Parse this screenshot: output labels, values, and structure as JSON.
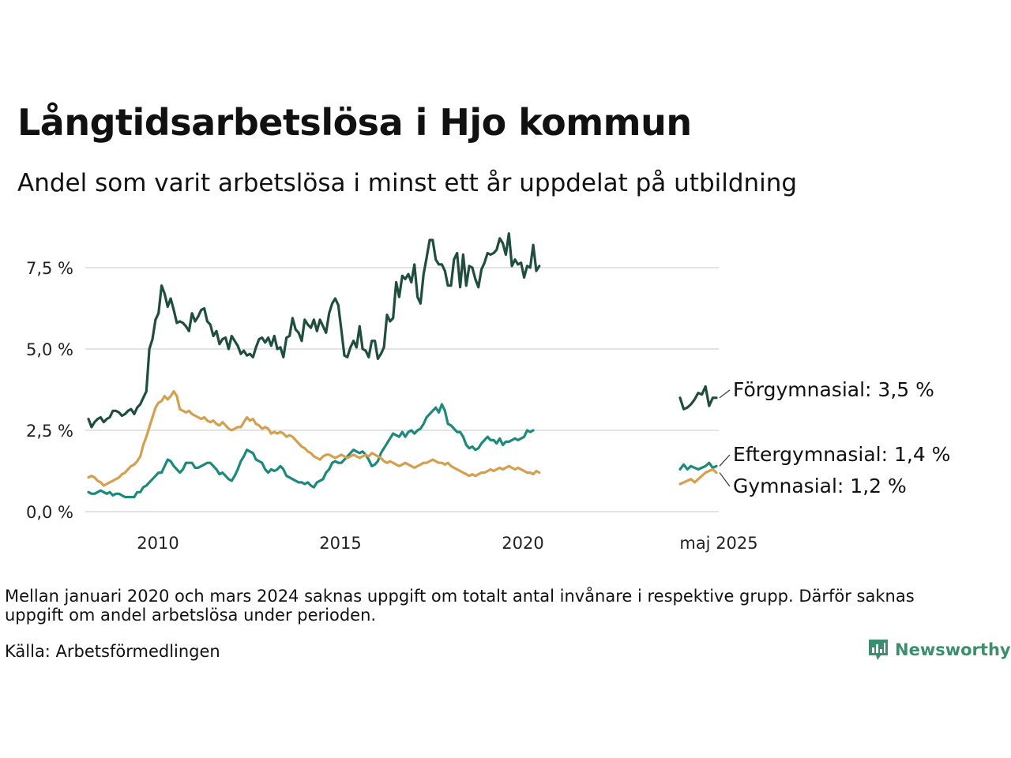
{
  "header": {
    "title": "Långtidsarbetslösa i Hjo kommun",
    "subtitle": "Andel som varit arbetslösa i minst ett år uppdelat på utbildning"
  },
  "footer": {
    "note": "Mellan januari 2020 och mars 2024 saknas uppgift om totalt antal invånare i respektive grupp. Därför saknas uppgift om andel arbetslösa under perioden.",
    "source": "Källa: Arbetsförmedlingen",
    "brand": "Newsworthy",
    "brand_icon": "bar-chart-logo-icon"
  },
  "chart_data": {
    "type": "line",
    "y_ticks": [
      "0,0 %",
      "2,5 %",
      "5,0 %",
      "7,5 %"
    ],
    "y_tick_values": [
      0,
      2.5,
      5.0,
      7.5
    ],
    "x_ticks": [
      "2010",
      "2015",
      "2020",
      "maj 2025"
    ],
    "grid": true,
    "legend": "end labels at right",
    "series": [
      {
        "name": "Förgymnasial",
        "label": "Förgymnasial: 3,5 %",
        "color": "#1f4e3d",
        "values": [
          2.85,
          2.6,
          2.75,
          2.85,
          2.9,
          2.75,
          2.85,
          2.9,
          3.1,
          3.1,
          3.05,
          2.95,
          3.0,
          3.1,
          3.15,
          3.0,
          3.2,
          3.3,
          3.5,
          3.7,
          5.0,
          5.3,
          5.9,
          6.1,
          6.95,
          6.7,
          6.3,
          6.55,
          6.2,
          5.8,
          5.85,
          5.8,
          5.7,
          5.55,
          6.1,
          5.85,
          6.0,
          6.2,
          6.25,
          5.85,
          5.75,
          5.4,
          5.55,
          5.15,
          5.3,
          5.35,
          5.0,
          5.4,
          5.25,
          5.1,
          4.85,
          4.95,
          4.8,
          4.85,
          4.75,
          5.05,
          5.3,
          5.35,
          5.2,
          5.35,
          5.1,
          5.4,
          5.0,
          5.05,
          4.75,
          5.35,
          5.4,
          5.95,
          5.6,
          5.5,
          5.25,
          5.9,
          5.75,
          5.65,
          5.9,
          5.55,
          5.9,
          5.7,
          5.5,
          6.1,
          6.4,
          6.55,
          6.35,
          5.6,
          4.8,
          4.75,
          5.05,
          5.25,
          5.05,
          5.7,
          5.0,
          4.95,
          4.75,
          5.25,
          5.25,
          4.7,
          4.85,
          5.05,
          6.05,
          5.85,
          5.95,
          7.05,
          6.6,
          7.25,
          7.15,
          7.3,
          7.05,
          7.6,
          6.6,
          6.4,
          7.3,
          7.8,
          8.35,
          8.35,
          7.75,
          7.6,
          7.6,
          7.4,
          6.95,
          6.95,
          7.75,
          7.95,
          6.9,
          7.9,
          6.95,
          7.55,
          7.5,
          7.15,
          6.9,
          7.45,
          7.65,
          7.95,
          7.9,
          7.95,
          8.05,
          8.4,
          8.25,
          7.9,
          8.55,
          7.55,
          7.75,
          7.6,
          7.65,
          7.2,
          7.55,
          7.5,
          8.2,
          7.4,
          7.55
        ],
        "tail_values": [
          3.5,
          3.15,
          3.2,
          3.3,
          3.45,
          3.65,
          3.6,
          3.85,
          3.25,
          3.5,
          3.5
        ]
      },
      {
        "name": "Eftergymnasial",
        "label": "Eftergymnasial: 1,4 %",
        "color": "#1c8a7a",
        "values": [
          0.6,
          0.55,
          0.55,
          0.6,
          0.65,
          0.6,
          0.55,
          0.6,
          0.5,
          0.55,
          0.55,
          0.5,
          0.45,
          0.45,
          0.45,
          0.45,
          0.6,
          0.6,
          0.75,
          0.8,
          0.9,
          1.0,
          1.1,
          1.2,
          1.2,
          1.4,
          1.6,
          1.55,
          1.4,
          1.3,
          1.2,
          1.3,
          1.5,
          1.5,
          1.5,
          1.35,
          1.35,
          1.4,
          1.45,
          1.5,
          1.5,
          1.4,
          1.3,
          1.15,
          1.2,
          1.1,
          1.0,
          0.95,
          1.1,
          1.3,
          1.55,
          1.7,
          1.9,
          1.85,
          1.8,
          1.6,
          1.55,
          1.5,
          1.3,
          1.2,
          1.3,
          1.25,
          1.3,
          1.4,
          1.3,
          1.1,
          1.05,
          1.0,
          0.95,
          0.9,
          0.9,
          0.85,
          0.9,
          0.8,
          0.75,
          0.9,
          0.95,
          1.0,
          1.2,
          1.3,
          1.5,
          1.55,
          1.5,
          1.5,
          1.6,
          1.7,
          1.8,
          1.9,
          1.85,
          1.8,
          1.85,
          1.75,
          1.6,
          1.4,
          1.45,
          1.55,
          1.8,
          1.95,
          2.1,
          2.25,
          2.4,
          2.35,
          2.3,
          2.45,
          2.3,
          2.45,
          2.5,
          2.4,
          2.5,
          2.55,
          2.7,
          2.9,
          3.0,
          3.1,
          3.2,
          3.05,
          3.3,
          3.1,
          2.7,
          2.65,
          2.55,
          2.45,
          2.45,
          2.3,
          2.05,
          1.95,
          2.0,
          1.9,
          1.95,
          2.1,
          2.2,
          2.3,
          2.2,
          2.2,
          2.1,
          2.25,
          2.05,
          2.15,
          2.15,
          2.2,
          2.25,
          2.2,
          2.25,
          2.3,
          2.5,
          2.45,
          2.5
        ],
        "tail_values": [
          1.3,
          1.45,
          1.3,
          1.4,
          1.35,
          1.3,
          1.35,
          1.4,
          1.5,
          1.35,
          1.4
        ]
      },
      {
        "name": "Gymnasial",
        "label": "Gymnasial: 1,2 %",
        "color": "#d4a04e",
        "values": [
          1.05,
          1.1,
          1.05,
          0.95,
          0.9,
          0.8,
          0.85,
          0.9,
          0.95,
          1.0,
          1.05,
          1.15,
          1.2,
          1.3,
          1.4,
          1.45,
          1.55,
          1.7,
          2.05,
          2.3,
          2.6,
          2.9,
          3.2,
          3.35,
          3.4,
          3.55,
          3.45,
          3.55,
          3.7,
          3.55,
          3.15,
          3.1,
          3.05,
          3.1,
          3.0,
          2.95,
          2.9,
          2.85,
          2.9,
          2.8,
          2.75,
          2.8,
          2.7,
          2.65,
          2.75,
          2.65,
          2.55,
          2.5,
          2.55,
          2.6,
          2.6,
          2.75,
          2.9,
          2.8,
          2.85,
          2.7,
          2.65,
          2.55,
          2.6,
          2.55,
          2.4,
          2.45,
          2.4,
          2.45,
          2.4,
          2.3,
          2.35,
          2.3,
          2.2,
          2.1,
          2.0,
          1.95,
          1.85,
          1.8,
          1.7,
          1.65,
          1.6,
          1.7,
          1.75,
          1.75,
          1.7,
          1.65,
          1.7,
          1.75,
          1.7,
          1.65,
          1.7,
          1.75,
          1.7,
          1.65,
          1.7,
          1.75,
          1.7,
          1.8,
          1.75,
          1.7,
          1.65,
          1.55,
          1.5,
          1.55,
          1.5,
          1.45,
          1.4,
          1.45,
          1.5,
          1.45,
          1.4,
          1.35,
          1.4,
          1.45,
          1.5,
          1.5,
          1.55,
          1.6,
          1.55,
          1.5,
          1.5,
          1.45,
          1.5,
          1.4,
          1.35,
          1.3,
          1.25,
          1.2,
          1.15,
          1.1,
          1.15,
          1.1,
          1.15,
          1.2,
          1.2,
          1.25,
          1.3,
          1.25,
          1.3,
          1.35,
          1.3,
          1.35,
          1.4,
          1.35,
          1.3,
          1.35,
          1.3,
          1.25,
          1.2,
          1.2,
          1.15,
          1.25,
          1.2
        ],
        "tail_values": [
          0.85,
          0.9,
          0.95,
          1.0,
          0.9,
          1.0,
          1.1,
          1.2,
          1.25,
          1.3,
          1.2
        ]
      }
    ]
  }
}
